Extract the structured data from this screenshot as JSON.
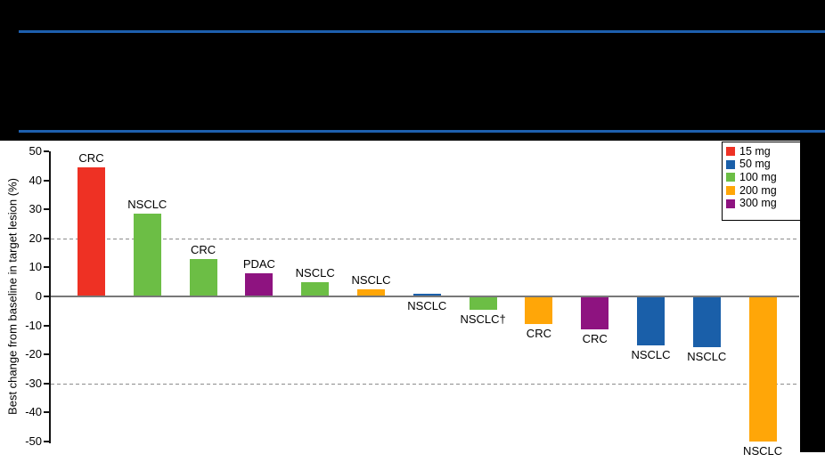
{
  "header": {
    "divider_color": "#1D5FAE",
    "note": ""
  },
  "chart_data": {
    "type": "bar",
    "title": "",
    "xlabel": "",
    "ylabel": "Best change from baseline in target lesion (%)",
    "ylim": [
      -50,
      50
    ],
    "yticks": [
      50,
      40,
      30,
      20,
      10,
      0,
      -10,
      -20,
      -30,
      -40,
      -50
    ],
    "reference_lines": [
      20,
      -30
    ],
    "grid": "off",
    "legend_position": "top-right",
    "legend": [
      {
        "label": "15 mg",
        "color": "#EE3124"
      },
      {
        "label": "50 mg",
        "color": "#1A5FA9"
      },
      {
        "label": "100 mg",
        "color": "#6CBE45"
      },
      {
        "label": "200 mg",
        "color": "#FFA608"
      },
      {
        "label": "300 mg",
        "color": "#8E1380"
      }
    ],
    "bars": [
      {
        "label": "CRC",
        "dose": "15 mg",
        "value": 44.5,
        "label_position": "above"
      },
      {
        "label": "NSCLC",
        "dose": "100 mg",
        "value": 28.5,
        "label_position": "above"
      },
      {
        "label": "CRC",
        "dose": "100 mg",
        "value": 13,
        "label_position": "above"
      },
      {
        "label": "PDAC",
        "dose": "300 mg",
        "value": 8,
        "label_position": "above"
      },
      {
        "label": "NSCLC",
        "dose": "100 mg",
        "value": 5,
        "label_position": "above"
      },
      {
        "label": "NSCLC",
        "dose": "200 mg",
        "value": 2.5,
        "label_position": "above"
      },
      {
        "label": "NSCLC",
        "dose": "50 mg",
        "value": 1,
        "label_position": "below"
      },
      {
        "label": "NSCLC†",
        "dose": "100 mg",
        "value": -4.5,
        "label_position": "below"
      },
      {
        "label": "CRC",
        "dose": "200 mg",
        "value": -9.5,
        "label_position": "below"
      },
      {
        "label": "CRC",
        "dose": "300 mg",
        "value": -11.5,
        "label_position": "below"
      },
      {
        "label": "NSCLC",
        "dose": "50 mg",
        "value": -17,
        "label_position": "below"
      },
      {
        "label": "NSCLC",
        "dose": "50 mg",
        "value": -17.5,
        "label_position": "below"
      },
      {
        "label": "NSCLC",
        "dose": "200 mg",
        "value": -50,
        "label_position": "below"
      }
    ]
  }
}
